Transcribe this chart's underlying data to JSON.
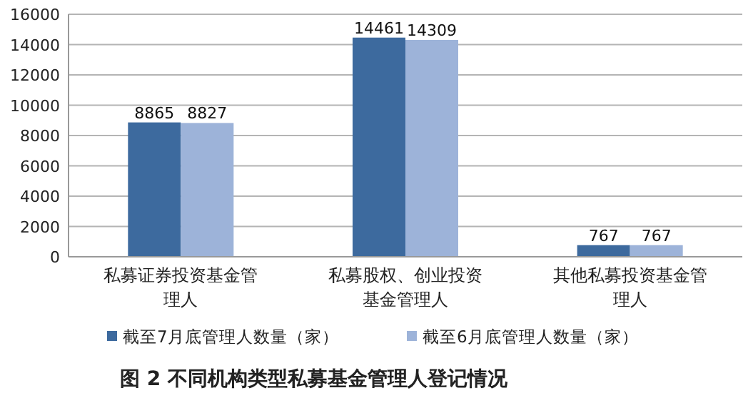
{
  "chart_data": {
    "type": "bar",
    "title": "图 2  不同机构类型私募基金管理人登记情况",
    "categories": [
      "私募证券投资基金管理人",
      "私募股权、创业投资基金管理人",
      "其他私募投资基金管理人"
    ],
    "series": [
      {
        "name": "截至7月底管理人数量（家）",
        "color": "#3d6a9e",
        "values": [
          8865,
          14461,
          767
        ]
      },
      {
        "name": "截至6月底管理人数量（家）",
        "color": "#9db3d9",
        "values": [
          8827,
          14309,
          767
        ]
      }
    ],
    "ylim": [
      0,
      16000
    ],
    "yticks": [
      0,
      2000,
      4000,
      6000,
      8000,
      10000,
      12000,
      14000,
      16000
    ],
    "grid": "y",
    "legend": "bottom",
    "data_labels": true
  }
}
